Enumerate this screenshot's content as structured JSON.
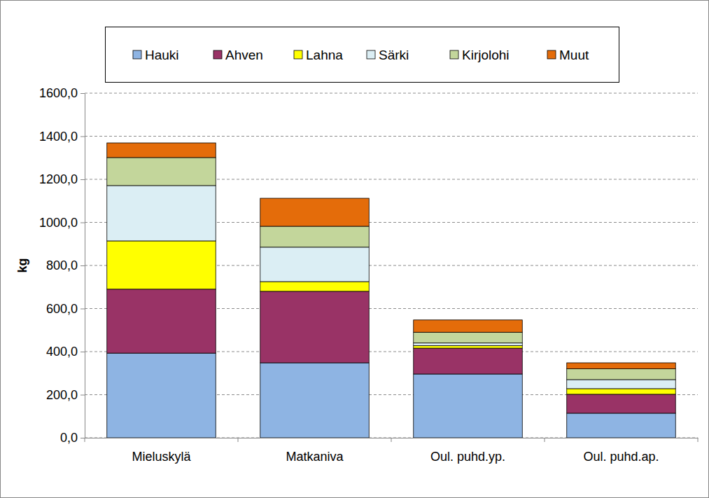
{
  "chart_data": {
    "type": "bar",
    "stacked": true,
    "y_label": "kg",
    "categories": [
      "Mieluskylä",
      "Matkaniva",
      "Oul. puhd.yp.",
      "Oul. puhd.ap."
    ],
    "series": [
      {
        "name": "Hauki",
        "color": "#8eb4e3",
        "values": [
          393,
          348,
          296,
          114
        ]
      },
      {
        "name": "Ahven",
        "color": "#993366",
        "values": [
          297,
          332,
          120,
          88
        ]
      },
      {
        "name": "Lahna",
        "color": "#ffff00",
        "values": [
          224,
          45,
          12,
          26
        ]
      },
      {
        "name": "Särki",
        "color": "#dbeef4",
        "values": [
          257,
          160,
          12,
          42
        ]
      },
      {
        "name": "Kirjolohi",
        "color": "#c3d69b",
        "values": [
          130,
          97,
          50,
          50
        ]
      },
      {
        "name": "Muut",
        "color": "#e46c0a",
        "values": [
          68,
          130,
          57,
          28
        ]
      }
    ],
    "ylim": [
      0,
      1600
    ],
    "yticks": [
      {
        "value": 0,
        "label": "0,0"
      },
      {
        "value": 200,
        "label": "200,0"
      },
      {
        "value": 400,
        "label": "400,0"
      },
      {
        "value": 600,
        "label": "600,0"
      },
      {
        "value": 800,
        "label": "800,0"
      },
      {
        "value": 1000,
        "label": "1000,0"
      },
      {
        "value": 1200,
        "label": "1200,0"
      },
      {
        "value": 1400,
        "label": "1400,0"
      },
      {
        "value": 1600,
        "label": "1600,0"
      }
    ],
    "grid": true,
    "legend": "top"
  }
}
